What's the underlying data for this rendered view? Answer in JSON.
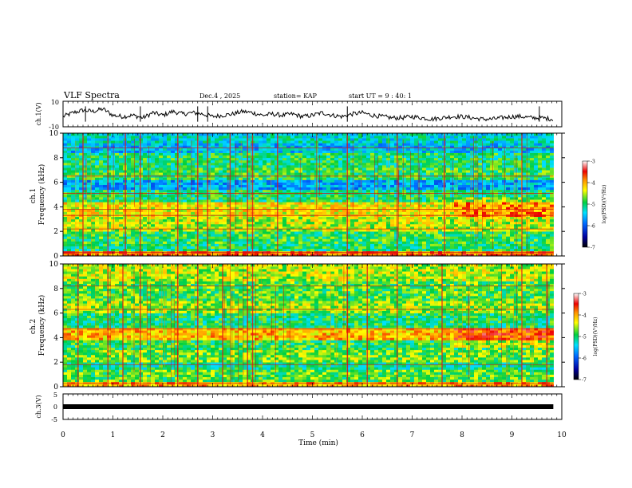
{
  "header": {
    "title": "VLF Spectra",
    "date": "Dec.4 , 2025",
    "station": "station= KAP",
    "start": "start UT = 9 : 40: 1"
  },
  "chart_data": [
    {
      "type": "line",
      "name": "ch1-waveform",
      "ylabel": "ch.1(V)",
      "ylim": [
        -10,
        10
      ],
      "y_ticks": [
        "10",
        "-10"
      ],
      "xlim": [
        0,
        10
      ],
      "x": [
        0.0,
        0.2,
        0.4,
        0.6,
        0.8,
        1.0,
        1.2,
        1.4,
        1.6,
        1.8,
        2.0,
        2.2,
        2.4,
        2.6,
        2.8,
        3.0,
        3.2,
        3.4,
        3.6,
        3.8,
        4.0,
        4.2,
        4.4,
        4.6,
        4.8,
        5.0,
        5.2,
        5.4,
        5.6,
        5.8,
        6.0,
        6.2,
        6.4,
        6.6,
        6.8,
        7.0,
        7.2,
        7.4,
        7.6,
        7.8,
        8.0,
        8.2,
        8.4,
        8.6,
        8.8,
        9.0,
        9.2,
        9.4,
        9.6,
        9.8
      ],
      "values": [
        -2,
        1,
        3,
        2,
        4,
        -1,
        -2,
        -1,
        -3,
        1,
        -1,
        2,
        0,
        1,
        0,
        -2,
        -1,
        0,
        2,
        1,
        -1,
        0,
        -1,
        0,
        -2,
        -1,
        1,
        -1,
        -2,
        0,
        1,
        -1,
        -2,
        -3,
        -3,
        -2,
        -3,
        -4,
        -3,
        -2,
        -2,
        -3,
        -4,
        -4,
        -3,
        -2,
        -2,
        -3,
        -3,
        -4
      ],
      "color": "#000000"
    },
    {
      "type": "heatmap",
      "name": "ch1-spectrogram",
      "ylabel": "ch.1 Frequency (kHz)",
      "ylim": [
        0,
        10
      ],
      "y_ticks": [
        0,
        2,
        4,
        6,
        8,
        10
      ],
      "xlim": [
        0,
        10
      ],
      "colorbar": {
        "label": "log(PSD)(V²/Hz)",
        "range": [
          -7,
          -3
        ],
        "ticks": [
          "-3",
          "-4",
          "-5",
          "-6",
          "-7"
        ]
      },
      "bands": [
        {
          "from": 0.0,
          "to": 0.4,
          "level": -3.8
        },
        {
          "from": 0.4,
          "to": 1.0,
          "level": -5.0
        },
        {
          "from": 1.0,
          "to": 2.0,
          "level": -4.9
        },
        {
          "from": 2.0,
          "to": 3.2,
          "level": -4.5
        },
        {
          "from": 3.2,
          "to": 4.4,
          "level": -4.3
        },
        {
          "from": 4.4,
          "to": 5.4,
          "level": -5.0
        },
        {
          "from": 5.4,
          "to": 6.2,
          "level": -5.6
        },
        {
          "from": 6.2,
          "to": 7.2,
          "level": -4.9
        },
        {
          "from": 7.2,
          "to": 8.4,
          "level": -5.0
        },
        {
          "from": 8.4,
          "to": 9.2,
          "level": -5.5
        },
        {
          "from": 9.2,
          "to": 10.0,
          "level": -5.3
        }
      ],
      "lines_khz": [
        0.3,
        2.2,
        3.3,
        3.8,
        5.1,
        6.5,
        8.8
      ],
      "bursts_min": [
        0.4,
        0.9,
        1.25,
        1.55,
        2.3,
        2.7,
        2.9,
        3.35,
        3.7,
        3.8,
        4.3,
        5.7,
        6.7,
        7.65,
        9.2
      ]
    },
    {
      "type": "heatmap",
      "name": "ch2-spectrogram",
      "ylabel": "ch.2 Frequency (kHz)",
      "ylim": [
        0,
        10
      ],
      "y_ticks": [
        0,
        2,
        4,
        6,
        8,
        10
      ],
      "xlim": [
        0,
        10
      ],
      "colorbar": {
        "label": "log(PSD)(V²/Hz)",
        "range": [
          -7,
          -3
        ],
        "ticks": [
          "-3",
          "-4",
          "-5",
          "-6",
          "-7"
        ]
      },
      "bands": [
        {
          "from": 0.0,
          "to": 0.4,
          "level": -4.0
        },
        {
          "from": 0.4,
          "to": 1.4,
          "level": -4.8
        },
        {
          "from": 1.4,
          "to": 2.0,
          "level": -5.1
        },
        {
          "from": 2.0,
          "to": 3.0,
          "level": -4.7
        },
        {
          "from": 3.0,
          "to": 3.8,
          "level": -4.9
        },
        {
          "from": 3.8,
          "to": 4.8,
          "level": -4.1
        },
        {
          "from": 4.8,
          "to": 6.0,
          "level": -5.0
        },
        {
          "from": 6.0,
          "to": 7.0,
          "level": -4.6
        },
        {
          "from": 7.0,
          "to": 8.6,
          "level": -4.8
        },
        {
          "from": 8.6,
          "to": 10.0,
          "level": -4.5
        }
      ],
      "lines_khz": [
        0.3,
        1.8,
        4.7,
        6.3,
        8.2
      ],
      "bursts_min": [
        0.3,
        0.9,
        1.2,
        1.55,
        2.3,
        2.7,
        3.2,
        3.7,
        3.8,
        5.7,
        6.1,
        6.7,
        7.6,
        9.2,
        9.7
      ]
    },
    {
      "type": "line",
      "name": "ch3-waveform",
      "ylabel": "ch.3(V)",
      "ylim": [
        -5,
        5
      ],
      "y_ticks": [
        "5",
        "0",
        "-5"
      ],
      "xlim": [
        0,
        10
      ],
      "x": [
        0.0,
        9.83
      ],
      "values": [
        0.0,
        0.0
      ],
      "color": "#000000"
    }
  ],
  "x_axis": {
    "label": "Time (min)",
    "ticks": [
      "0",
      "1",
      "2",
      "3",
      "4",
      "5",
      "6",
      "7",
      "8",
      "9",
      "10"
    ]
  }
}
